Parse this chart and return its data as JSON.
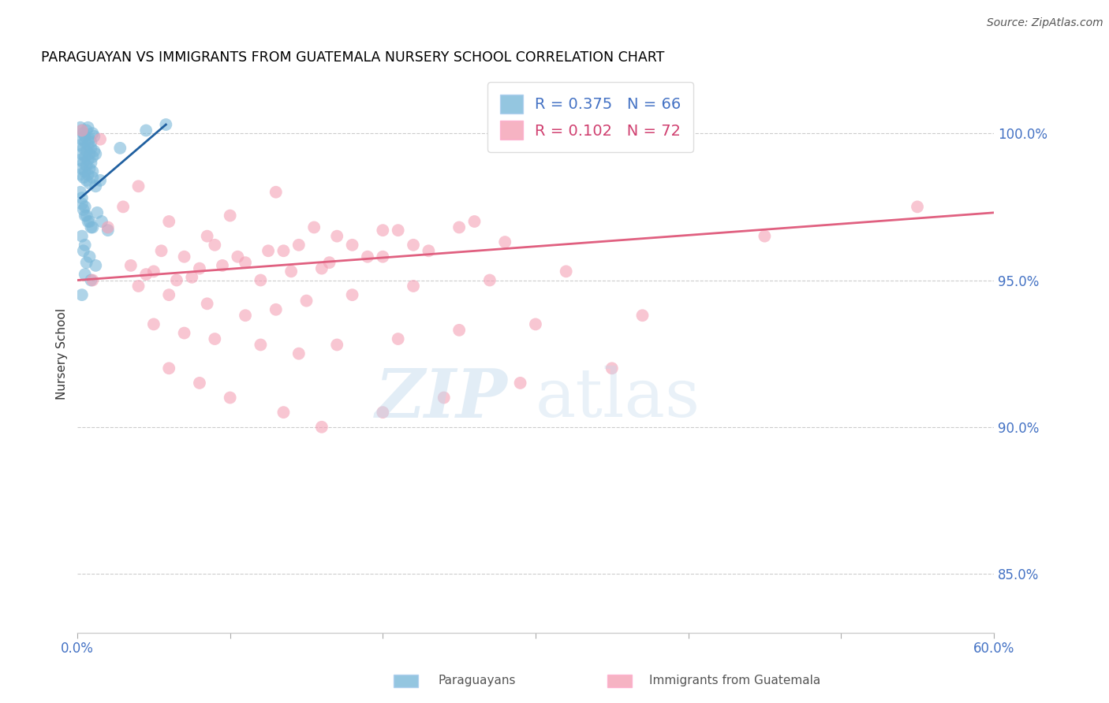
{
  "title": "PARAGUAYAN VS IMMIGRANTS FROM GUATEMALA NURSERY SCHOOL CORRELATION CHART",
  "source": "Source: ZipAtlas.com",
  "ylabel": "Nursery School",
  "yticks": [
    85.0,
    90.0,
    95.0,
    100.0
  ],
  "ytick_labels": [
    "85.0%",
    "90.0%",
    "95.0%",
    "100.0%"
  ],
  "xlim": [
    0.0,
    60.0
  ],
  "ylim": [
    83.0,
    102.0
  ],
  "legend_blue_R": "R = 0.375",
  "legend_blue_N": "N = 66",
  "legend_pink_R": "R = 0.102",
  "legend_pink_N": "N = 72",
  "legend_label_blue": "Paraguayans",
  "legend_label_pink": "Immigrants from Guatemala",
  "blue_color": "#7ab8d9",
  "pink_color": "#f4a0b5",
  "blue_line_color": "#2060a0",
  "pink_line_color": "#e06080",
  "blue_scatter_x": [
    0.2,
    0.3,
    0.4,
    0.5,
    0.6,
    0.7,
    0.8,
    0.9,
    1.0,
    1.1,
    0.2,
    0.3,
    0.4,
    0.5,
    0.6,
    0.7,
    0.8,
    0.9,
    1.0,
    1.1,
    0.2,
    0.3,
    0.4,
    0.5,
    0.6,
    0.7,
    0.8,
    0.9,
    1.0,
    1.2,
    0.2,
    0.3,
    0.4,
    0.5,
    0.6,
    0.7,
    0.8,
    1.0,
    1.2,
    1.5,
    0.2,
    0.3,
    0.5,
    0.6,
    0.8,
    1.0,
    1.3,
    1.6,
    2.0,
    0.3,
    0.4,
    0.5,
    0.7,
    0.9,
    0.3,
    0.5,
    0.8,
    1.2,
    4.5,
    0.4,
    0.6,
    0.9,
    0.3,
    2.8,
    5.8,
    0.5
  ],
  "blue_scatter_y": [
    100.2,
    100.1,
    100.0,
    99.9,
    100.1,
    100.2,
    99.8,
    99.7,
    100.0,
    99.9,
    99.6,
    99.8,
    99.5,
    99.7,
    99.4,
    99.6,
    99.3,
    99.5,
    99.2,
    99.4,
    99.1,
    99.3,
    99.0,
    99.2,
    98.9,
    99.1,
    98.8,
    99.0,
    98.7,
    99.3,
    98.6,
    98.8,
    98.5,
    98.7,
    98.4,
    98.6,
    98.3,
    98.5,
    98.2,
    98.4,
    98.0,
    97.8,
    97.5,
    97.2,
    97.0,
    96.8,
    97.3,
    97.0,
    96.7,
    97.6,
    97.4,
    97.2,
    97.0,
    96.8,
    96.5,
    96.2,
    95.8,
    95.5,
    100.1,
    96.0,
    95.6,
    95.0,
    94.5,
    99.5,
    100.3,
    95.2
  ],
  "pink_scatter_x": [
    0.3,
    1.5,
    4.0,
    6.0,
    8.5,
    10.0,
    13.0,
    15.5,
    18.0,
    20.0,
    3.0,
    5.5,
    7.0,
    9.0,
    11.0,
    13.5,
    16.0,
    19.0,
    22.0,
    25.0,
    2.0,
    4.5,
    6.5,
    8.0,
    10.5,
    12.5,
    14.5,
    17.0,
    21.0,
    26.0,
    3.5,
    5.0,
    7.5,
    9.5,
    12.0,
    14.0,
    16.5,
    20.0,
    23.0,
    28.0,
    4.0,
    6.0,
    8.5,
    11.0,
    13.0,
    15.0,
    18.0,
    22.0,
    27.0,
    32.0,
    5.0,
    7.0,
    9.0,
    12.0,
    14.5,
    17.0,
    21.0,
    25.0,
    30.0,
    37.0,
    6.0,
    8.0,
    10.0,
    13.5,
    16.0,
    20.0,
    24.0,
    29.0,
    35.0,
    55.0,
    1.0,
    45.0
  ],
  "pink_scatter_y": [
    100.1,
    99.8,
    98.2,
    97.0,
    96.5,
    97.2,
    98.0,
    96.8,
    96.2,
    96.7,
    97.5,
    96.0,
    95.8,
    96.2,
    95.6,
    96.0,
    95.4,
    95.8,
    96.2,
    96.8,
    96.8,
    95.2,
    95.0,
    95.4,
    95.8,
    96.0,
    96.2,
    96.5,
    96.7,
    97.0,
    95.5,
    95.3,
    95.1,
    95.5,
    95.0,
    95.3,
    95.6,
    95.8,
    96.0,
    96.3,
    94.8,
    94.5,
    94.2,
    93.8,
    94.0,
    94.3,
    94.5,
    94.8,
    95.0,
    95.3,
    93.5,
    93.2,
    93.0,
    92.8,
    92.5,
    92.8,
    93.0,
    93.3,
    93.5,
    93.8,
    92.0,
    91.5,
    91.0,
    90.5,
    90.0,
    90.5,
    91.0,
    91.5,
    92.0,
    97.5,
    95.0,
    96.5
  ],
  "pink_line_x0": 0.0,
  "pink_line_x1": 60.0,
  "pink_line_y0": 95.0,
  "pink_line_y1": 97.3,
  "blue_line_x0": 0.2,
  "blue_line_x1": 5.8,
  "blue_line_y0": 97.8,
  "blue_line_y1": 100.3
}
